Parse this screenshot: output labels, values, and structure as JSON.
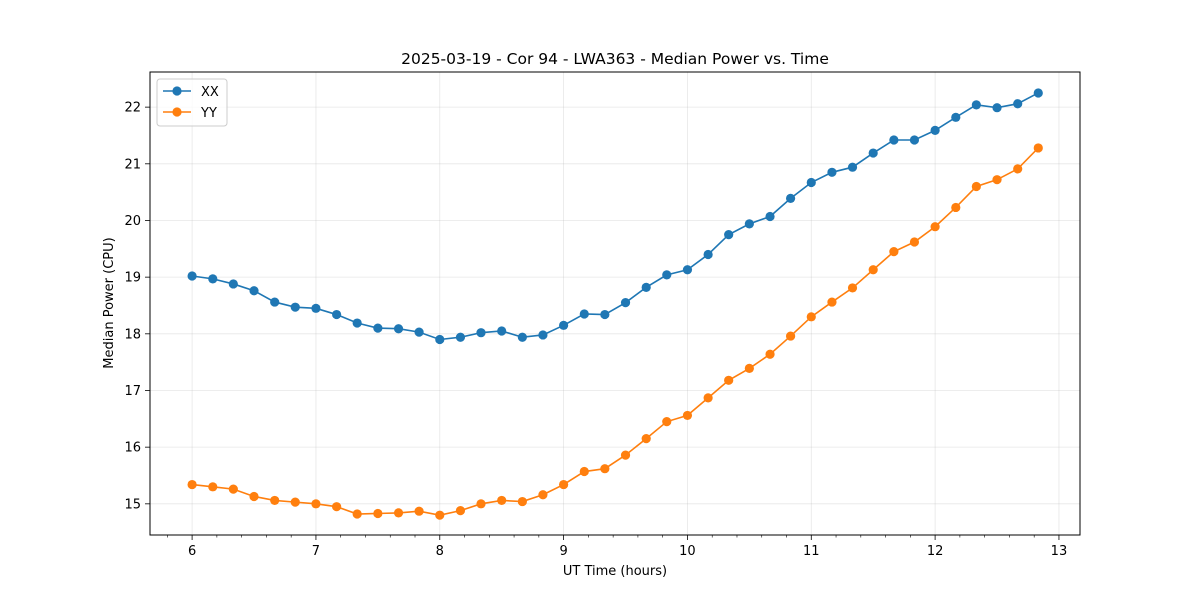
{
  "chart_data": {
    "type": "line",
    "title": "2025-03-19 - Cor 94 - LWA363 - Median Power vs. Time",
    "xlabel": "UT Time (hours)",
    "ylabel": "Median Power (CPU)",
    "xlim": [
      5.66,
      13.17
    ],
    "ylim": [
      14.45,
      22.62
    ],
    "xticks": [
      6,
      7,
      8,
      9,
      10,
      11,
      12,
      13
    ],
    "yticks": [
      15,
      16,
      17,
      18,
      19,
      20,
      21,
      22
    ],
    "grid": true,
    "legend_position": "top-left",
    "x": [
      6.0,
      6.167,
      6.333,
      6.5,
      6.667,
      6.833,
      7.0,
      7.167,
      7.333,
      7.5,
      7.667,
      7.833,
      8.0,
      8.167,
      8.333,
      8.5,
      8.667,
      8.833,
      9.0,
      9.167,
      9.333,
      9.5,
      9.667,
      9.833,
      10.0,
      10.167,
      10.333,
      10.5,
      10.667,
      10.833,
      11.0,
      11.167,
      11.333,
      11.5,
      11.667,
      11.833,
      12.0,
      12.167,
      12.333,
      12.5,
      12.667,
      12.833
    ],
    "series": [
      {
        "name": "XX",
        "color": "#1f77b4",
        "values": [
          19.02,
          18.97,
          18.88,
          18.76,
          18.56,
          18.47,
          18.45,
          18.34,
          18.19,
          18.1,
          18.09,
          18.03,
          17.9,
          17.94,
          18.02,
          18.05,
          17.94,
          17.98,
          18.15,
          18.35,
          18.34,
          18.55,
          18.82,
          19.04,
          19.13,
          19.4,
          19.75,
          19.94,
          20.07,
          20.39,
          20.67,
          20.85,
          20.94,
          21.19,
          21.42,
          21.42,
          21.59,
          21.82,
          22.04,
          21.99,
          22.06,
          22.25
        ]
      },
      {
        "name": "YY",
        "color": "#ff7f0e",
        "values": [
          15.34,
          15.3,
          15.26,
          15.13,
          15.06,
          15.03,
          15.0,
          14.95,
          14.82,
          14.83,
          14.84,
          14.87,
          14.8,
          14.88,
          15.0,
          15.06,
          15.04,
          15.16,
          15.34,
          15.57,
          15.62,
          15.86,
          16.15,
          16.45,
          16.56,
          16.87,
          17.18,
          17.39,
          17.64,
          17.96,
          18.3,
          18.56,
          18.81,
          19.13,
          19.45,
          19.62,
          19.89,
          20.23,
          20.6,
          20.72,
          20.91,
          21.28
        ]
      }
    ]
  }
}
